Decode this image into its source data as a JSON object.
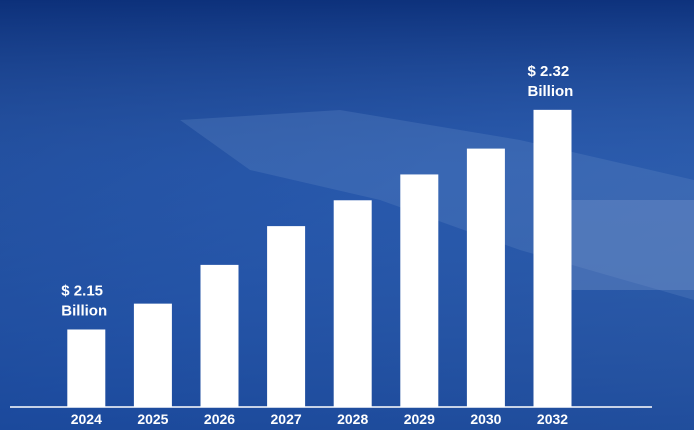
{
  "chart_data": {
    "type": "bar",
    "categories": [
      "2024",
      "2025",
      "2026",
      "2027",
      "2028",
      "2029",
      "2030",
      "2032"
    ],
    "values": [
      2.15,
      2.17,
      2.2,
      2.23,
      2.25,
      2.27,
      2.29,
      2.32
    ],
    "value_labels": [
      "$ 2.15 Billion",
      null,
      null,
      null,
      null,
      null,
      null,
      "$ 2.32 Billion"
    ],
    "color": "#ffffff",
    "ylim": [
      2.09,
      2.34
    ]
  }
}
